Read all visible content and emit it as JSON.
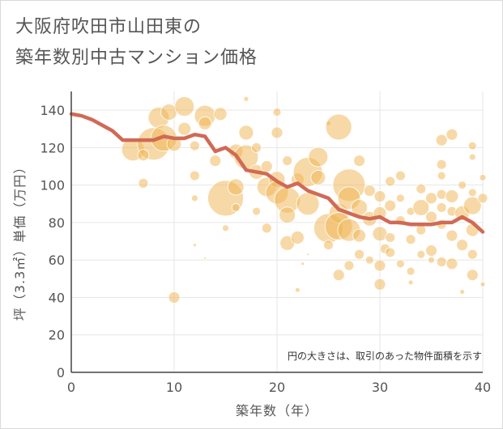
{
  "title_line1": "大阪府吹田市山田東の",
  "title_line2": "築年数別中古マンション価格",
  "chart_data": {
    "type": "scatter",
    "xlabel": "築年数（年）",
    "ylabel": "坪（3.3㎡）単価（万円）",
    "xlim": [
      0,
      40
    ],
    "ylim": [
      0,
      150
    ],
    "xticks": [
      0,
      10,
      20,
      30,
      40
    ],
    "yticks": [
      0,
      20,
      40,
      60,
      80,
      100,
      120,
      140
    ],
    "grid": true,
    "note": "円の大きさは、取引のあった物件面積を示す",
    "colors": {
      "bubble": "#f0b44f",
      "line": "#d06a55",
      "axis": "#555555",
      "grid": "#e6e6e6"
    },
    "trend_line": {
      "x": [
        0,
        1,
        2,
        3,
        4,
        5,
        6,
        7,
        8,
        9,
        10,
        11,
        12,
        13,
        14,
        15,
        16,
        17,
        18,
        19,
        20,
        21,
        22,
        23,
        24,
        25,
        26,
        27,
        28,
        29,
        30,
        31,
        32,
        33,
        34,
        35,
        36,
        37,
        38,
        39,
        40
      ],
      "y": [
        138,
        137,
        135,
        132,
        129,
        124,
        124,
        124,
        124,
        126,
        125,
        125,
        127,
        126,
        118,
        120,
        116,
        108,
        107,
        106,
        102,
        99,
        101,
        97,
        95,
        93,
        87,
        85,
        83,
        82,
        83,
        80,
        80,
        79,
        79,
        79,
        80,
        80,
        83,
        80,
        75
      ]
    },
    "bubbles": [
      {
        "x": 6,
        "y": 119,
        "s": 14
      },
      {
        "x": 8,
        "y": 122,
        "s": 20
      },
      {
        "x": 8.5,
        "y": 136,
        "s": 13
      },
      {
        "x": 9,
        "y": 125,
        "s": 16
      },
      {
        "x": 9.5,
        "y": 139,
        "s": 10
      },
      {
        "x": 7,
        "y": 116,
        "s": 7
      },
      {
        "x": 7,
        "y": 101,
        "s": 6
      },
      {
        "x": 10,
        "y": 40,
        "s": 7
      },
      {
        "x": 11,
        "y": 142,
        "s": 12
      },
      {
        "x": 11,
        "y": 130,
        "s": 8
      },
      {
        "x": 10,
        "y": 122,
        "s": 9
      },
      {
        "x": 12,
        "y": 105,
        "s": 6
      },
      {
        "x": 12,
        "y": 93,
        "s": 4
      },
      {
        "x": 12,
        "y": 68,
        "s": 2
      },
      {
        "x": 12,
        "y": 121,
        "s": 6
      },
      {
        "x": 13,
        "y": 137,
        "s": 13
      },
      {
        "x": 13,
        "y": 133,
        "s": 8
      },
      {
        "x": 13,
        "y": 61,
        "s": 1.5
      },
      {
        "x": 14,
        "y": 113,
        "s": 7
      },
      {
        "x": 14.5,
        "y": 138,
        "s": 8
      },
      {
        "x": 15,
        "y": 93,
        "s": 22
      },
      {
        "x": 15,
        "y": 77,
        "s": 4
      },
      {
        "x": 16,
        "y": 118,
        "s": 9
      },
      {
        "x": 16,
        "y": 99,
        "s": 10
      },
      {
        "x": 16,
        "y": 88,
        "s": 5
      },
      {
        "x": 17,
        "y": 146,
        "s": 3
      },
      {
        "x": 17,
        "y": 128,
        "s": 9
      },
      {
        "x": 17,
        "y": 115,
        "s": 15
      },
      {
        "x": 18,
        "y": 107,
        "s": 9
      },
      {
        "x": 18,
        "y": 120,
        "s": 6
      },
      {
        "x": 18,
        "y": 86,
        "s": 5
      },
      {
        "x": 19,
        "y": 110,
        "s": 7
      },
      {
        "x": 19,
        "y": 99,
        "s": 12
      },
      {
        "x": 19,
        "y": 77,
        "s": 6
      },
      {
        "x": 20,
        "y": 139,
        "s": 5
      },
      {
        "x": 20,
        "y": 128,
        "s": 7
      },
      {
        "x": 20,
        "y": 103,
        "s": 10
      },
      {
        "x": 20,
        "y": 96,
        "s": 14
      },
      {
        "x": 21,
        "y": 92,
        "s": 16
      },
      {
        "x": 21,
        "y": 84,
        "s": 10
      },
      {
        "x": 21,
        "y": 69,
        "s": 9
      },
      {
        "x": 21,
        "y": 113,
        "s": 6
      },
      {
        "x": 22,
        "y": 103,
        "s": 8
      },
      {
        "x": 22,
        "y": 72,
        "s": 8
      },
      {
        "x": 22,
        "y": 44,
        "s": 3
      },
      {
        "x": 22.5,
        "y": 58,
        "s": 2
      },
      {
        "x": 23,
        "y": 107,
        "s": 18
      },
      {
        "x": 23,
        "y": 90,
        "s": 14
      },
      {
        "x": 23,
        "y": 63,
        "s": 1.5
      },
      {
        "x": 24,
        "y": 115,
        "s": 12
      },
      {
        "x": 24,
        "y": 104,
        "s": 9
      },
      {
        "x": 25,
        "y": 133,
        "s": 3
      },
      {
        "x": 25,
        "y": 77,
        "s": 18
      },
      {
        "x": 25,
        "y": 68,
        "s": 6
      },
      {
        "x": 26,
        "y": 131,
        "s": 16
      },
      {
        "x": 26,
        "y": 85,
        "s": 12
      },
      {
        "x": 26,
        "y": 78,
        "s": 17
      },
      {
        "x": 26,
        "y": 52,
        "s": 7
      },
      {
        "x": 27,
        "y": 100,
        "s": 20
      },
      {
        "x": 27,
        "y": 93,
        "s": 14
      },
      {
        "x": 27,
        "y": 76,
        "s": 14
      },
      {
        "x": 27,
        "y": 57,
        "s": 6
      },
      {
        "x": 28,
        "y": 113,
        "s": 7
      },
      {
        "x": 28,
        "y": 88,
        "s": 10
      },
      {
        "x": 28,
        "y": 73,
        "s": 8
      },
      {
        "x": 28,
        "y": 63,
        "s": 6
      },
      {
        "x": 29,
        "y": 97,
        "s": 7
      },
      {
        "x": 29,
        "y": 82,
        "s": 9
      },
      {
        "x": 29,
        "y": 60,
        "s": 5
      },
      {
        "x": 30,
        "y": 94,
        "s": 7
      },
      {
        "x": 30,
        "y": 85,
        "s": 8
      },
      {
        "x": 30,
        "y": 74,
        "s": 9
      },
      {
        "x": 30,
        "y": 57,
        "s": 7
      },
      {
        "x": 30,
        "y": 47,
        "s": 7
      },
      {
        "x": 30.5,
        "y": 66,
        "s": 6
      },
      {
        "x": 31,
        "y": 89,
        "s": 7
      },
      {
        "x": 31,
        "y": 102,
        "s": 6
      },
      {
        "x": 31,
        "y": 72,
        "s": 6
      },
      {
        "x": 31,
        "y": 64,
        "s": 6
      },
      {
        "x": 32,
        "y": 105,
        "s": 6
      },
      {
        "x": 32,
        "y": 93,
        "s": 5
      },
      {
        "x": 32,
        "y": 81,
        "s": 6
      },
      {
        "x": 32,
        "y": 58,
        "s": 5
      },
      {
        "x": 33,
        "y": 86,
        "s": 5
      },
      {
        "x": 33,
        "y": 71,
        "s": 6
      },
      {
        "x": 33,
        "y": 54,
        "s": 5
      },
      {
        "x": 33,
        "y": 48,
        "s": 3
      },
      {
        "x": 34,
        "y": 98,
        "s": 6
      },
      {
        "x": 34,
        "y": 88,
        "s": 10
      },
      {
        "x": 34,
        "y": 76,
        "s": 6
      },
      {
        "x": 34,
        "y": 63,
        "s": 5
      },
      {
        "x": 35,
        "y": 93,
        "s": 7
      },
      {
        "x": 35,
        "y": 83,
        "s": 7
      },
      {
        "x": 35,
        "y": 65,
        "s": 7
      },
      {
        "x": 35,
        "y": 60,
        "s": 4
      },
      {
        "x": 36,
        "y": 124,
        "s": 7
      },
      {
        "x": 36,
        "y": 111,
        "s": 6
      },
      {
        "x": 36,
        "y": 105,
        "s": 5
      },
      {
        "x": 36,
        "y": 95,
        "s": 6
      },
      {
        "x": 36,
        "y": 88,
        "s": 6
      },
      {
        "x": 36,
        "y": 79,
        "s": 6
      },
      {
        "x": 36,
        "y": 59,
        "s": 6
      },
      {
        "x": 37,
        "y": 127,
        "s": 7
      },
      {
        "x": 37,
        "y": 94,
        "s": 8
      },
      {
        "x": 37,
        "y": 86,
        "s": 6
      },
      {
        "x": 37,
        "y": 73,
        "s": 7
      },
      {
        "x": 37,
        "y": 58,
        "s": 7
      },
      {
        "x": 38,
        "y": 100,
        "s": 5
      },
      {
        "x": 38,
        "y": 85,
        "s": 9
      },
      {
        "x": 38,
        "y": 68,
        "s": 7
      },
      {
        "x": 38,
        "y": 43,
        "s": 3
      },
      {
        "x": 39,
        "y": 121,
        "s": 5
      },
      {
        "x": 39,
        "y": 115,
        "s": 4
      },
      {
        "x": 39,
        "y": 96,
        "s": 5
      },
      {
        "x": 39,
        "y": 89,
        "s": 11
      },
      {
        "x": 39,
        "y": 76,
        "s": 8
      },
      {
        "x": 39,
        "y": 63,
        "s": 6
      },
      {
        "x": 39,
        "y": 52,
        "s": 7
      },
      {
        "x": 40,
        "y": 104,
        "s": 4
      },
      {
        "x": 40,
        "y": 93,
        "s": 6
      },
      {
        "x": 40,
        "y": 47,
        "s": 3
      }
    ]
  }
}
